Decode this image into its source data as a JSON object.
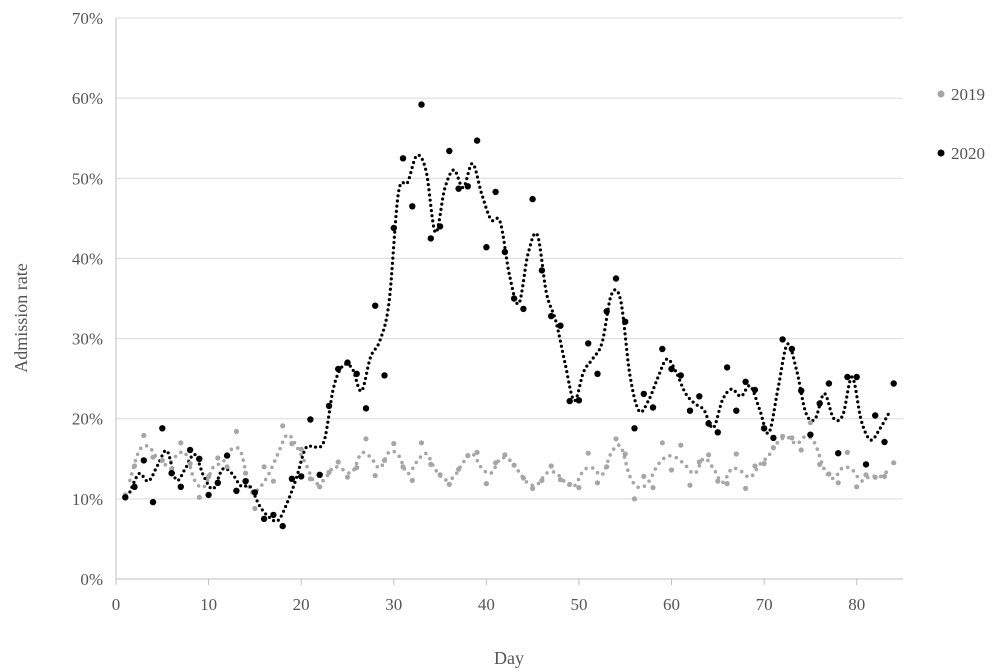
{
  "chart_data": {
    "type": "scatter",
    "title": "",
    "xlabel": "Day",
    "ylabel": "Admission rate",
    "xlim": [
      0,
      85
    ],
    "ylim": [
      0,
      70
    ],
    "x_ticks": [
      0,
      10,
      20,
      30,
      40,
      50,
      60,
      70,
      80
    ],
    "y_ticks": [
      0,
      10,
      20,
      30,
      40,
      50,
      60,
      70
    ],
    "x_tick_labels": [
      "0",
      "10",
      "20",
      "30",
      "40",
      "50",
      "60",
      "70",
      "80"
    ],
    "y_tick_labels": [
      "0%",
      "10%",
      "20%",
      "30%",
      "40%",
      "50%",
      "60%",
      "70%"
    ],
    "grid": "horizontal",
    "legend_position": "right",
    "trendline": "dotted moving average",
    "series": [
      {
        "name": "2019",
        "color": "#a6a6a6",
        "x": [
          1,
          2,
          3,
          4,
          5,
          6,
          7,
          8,
          9,
          10,
          11,
          12,
          13,
          14,
          15,
          16,
          17,
          18,
          19,
          20,
          21,
          22,
          23,
          24,
          25,
          26,
          27,
          28,
          29,
          30,
          31,
          32,
          33,
          34,
          35,
          36,
          37,
          38,
          39,
          40,
          41,
          42,
          43,
          44,
          45,
          46,
          47,
          48,
          49,
          50,
          51,
          52,
          53,
          54,
          55,
          56,
          57,
          58,
          59,
          60,
          61,
          62,
          63,
          64,
          65,
          66,
          67,
          68,
          69,
          70,
          71,
          72,
          73,
          74,
          75,
          76,
          77,
          78,
          79,
          80,
          81,
          82,
          83,
          84
        ],
        "y": [
          10.5,
          14.1,
          17.9,
          15.2,
          14.8,
          13.7,
          17.0,
          14.4,
          10.2,
          12.8,
          15.1,
          14.0,
          18.4,
          13.2,
          8.8,
          14.0,
          12.2,
          19.1,
          16.9,
          16.2,
          12.5,
          11.5,
          13.3,
          14.6,
          12.7,
          13.9,
          17.5,
          12.9,
          14.8,
          16.9,
          14.0,
          12.3,
          17.0,
          14.3,
          13.0,
          11.8,
          13.7,
          15.4,
          15.8,
          11.9,
          14.5,
          15.5,
          14.2,
          12.6,
          11.3,
          12.3,
          14.1,
          12.4,
          11.8,
          11.4,
          15.7,
          12.0,
          14.0,
          17.5,
          15.6,
          10.0,
          12.8,
          11.4,
          17.0,
          13.6,
          16.7,
          11.7,
          14.6,
          15.5,
          12.2,
          11.9,
          15.6,
          11.3,
          14.1,
          14.4,
          16.4,
          17.8,
          17.6,
          16.1,
          19.5,
          14.3,
          13.1,
          12.0,
          15.8,
          11.5,
          13.0,
          12.7,
          12.8,
          14.5
        ]
      },
      {
        "name": "2020",
        "color": "#000000",
        "x": [
          1,
          2,
          3,
          4,
          5,
          6,
          7,
          8,
          9,
          10,
          11,
          12,
          13,
          14,
          15,
          16,
          17,
          18,
          19,
          20,
          21,
          22,
          23,
          24,
          25,
          26,
          27,
          28,
          29,
          30,
          31,
          32,
          33,
          34,
          35,
          36,
          37,
          38,
          39,
          40,
          41,
          42,
          43,
          44,
          45,
          46,
          47,
          48,
          49,
          50,
          51,
          52,
          53,
          54,
          55,
          56,
          57,
          58,
          59,
          60,
          61,
          62,
          63,
          64,
          65,
          66,
          67,
          68,
          69,
          70,
          71,
          72,
          73,
          74,
          75,
          76,
          77,
          78,
          79,
          80,
          81,
          82,
          83,
          84
        ],
        "y": [
          10.2,
          11.5,
          14.8,
          9.6,
          18.8,
          13.2,
          11.5,
          16.1,
          15.0,
          10.5,
          12.0,
          15.4,
          11.0,
          12.2,
          10.8,
          7.5,
          8.0,
          6.6,
          12.5,
          12.8,
          19.9,
          13.0,
          21.6,
          26.2,
          27.0,
          25.6,
          21.3,
          34.1,
          25.4,
          43.8,
          52.5,
          46.5,
          59.2,
          42.5,
          44.0,
          53.4,
          48.7,
          49.0,
          54.7,
          41.4,
          48.3,
          40.8,
          35.0,
          33.7,
          47.4,
          38.5,
          32.8,
          31.6,
          22.2,
          22.3,
          29.4,
          25.6,
          33.4,
          37.5,
          32.1,
          18.8,
          23.1,
          21.4,
          28.7,
          26.2,
          25.4,
          21.0,
          22.8,
          19.4,
          18.3,
          26.4,
          21.0,
          24.6,
          23.6,
          18.8,
          17.6,
          29.9,
          28.7,
          23.5,
          18.0,
          21.9,
          24.4,
          15.7,
          25.2,
          25.2,
          14.3,
          20.4,
          17.1,
          24.4
        ]
      }
    ]
  }
}
